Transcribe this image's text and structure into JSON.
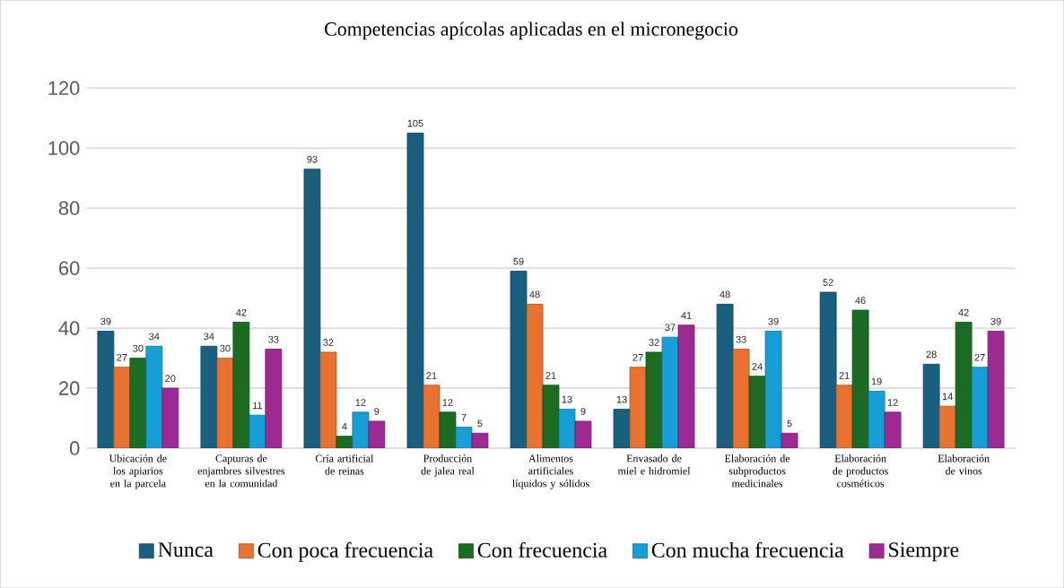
{
  "chart_data": {
    "type": "bar",
    "title": "Competencias apícolas aplicadas en el micronegocio",
    "categories": [
      "Ubicación de los apiarios en la parcela",
      "Capturas de enjambres silvestres en la comunidad",
      "Cría artificial de reinas",
      "Producción de jalea real",
      "Alimentos artificiales líquidos y sólidos",
      "Envasado de miel e hidromiel",
      "Elaboración de subproductos medicinales",
      "Elaboración de productos cosméticos",
      "Elaboración de vinos"
    ],
    "series": [
      {
        "name": "Nunca",
        "color": "#1a5e80",
        "values": [
          39,
          34,
          93,
          105,
          59,
          13,
          48,
          52,
          28
        ]
      },
      {
        "name": "Con poca frecuencia",
        "color": "#e8722f",
        "values": [
          27,
          30,
          32,
          21,
          48,
          27,
          33,
          21,
          14
        ]
      },
      {
        "name": "Con frecuencia",
        "color": "#1b6b22",
        "values": [
          30,
          42,
          4,
          12,
          21,
          32,
          24,
          46,
          42
        ]
      },
      {
        "name": "Con mucha frecuencia",
        "color": "#159fd6",
        "values": [
          34,
          11,
          12,
          7,
          13,
          37,
          39,
          19,
          27
        ]
      },
      {
        "name": "Siempre",
        "color": "#9c2a92",
        "values": [
          20,
          33,
          9,
          5,
          9,
          41,
          5,
          12,
          39
        ]
      }
    ],
    "ylim": [
      0,
      120
    ],
    "yticks": [
      0,
      20,
      40,
      60,
      80,
      100,
      120
    ],
    "grid": "y",
    "legend": "bottom",
    "data_labels": true
  }
}
